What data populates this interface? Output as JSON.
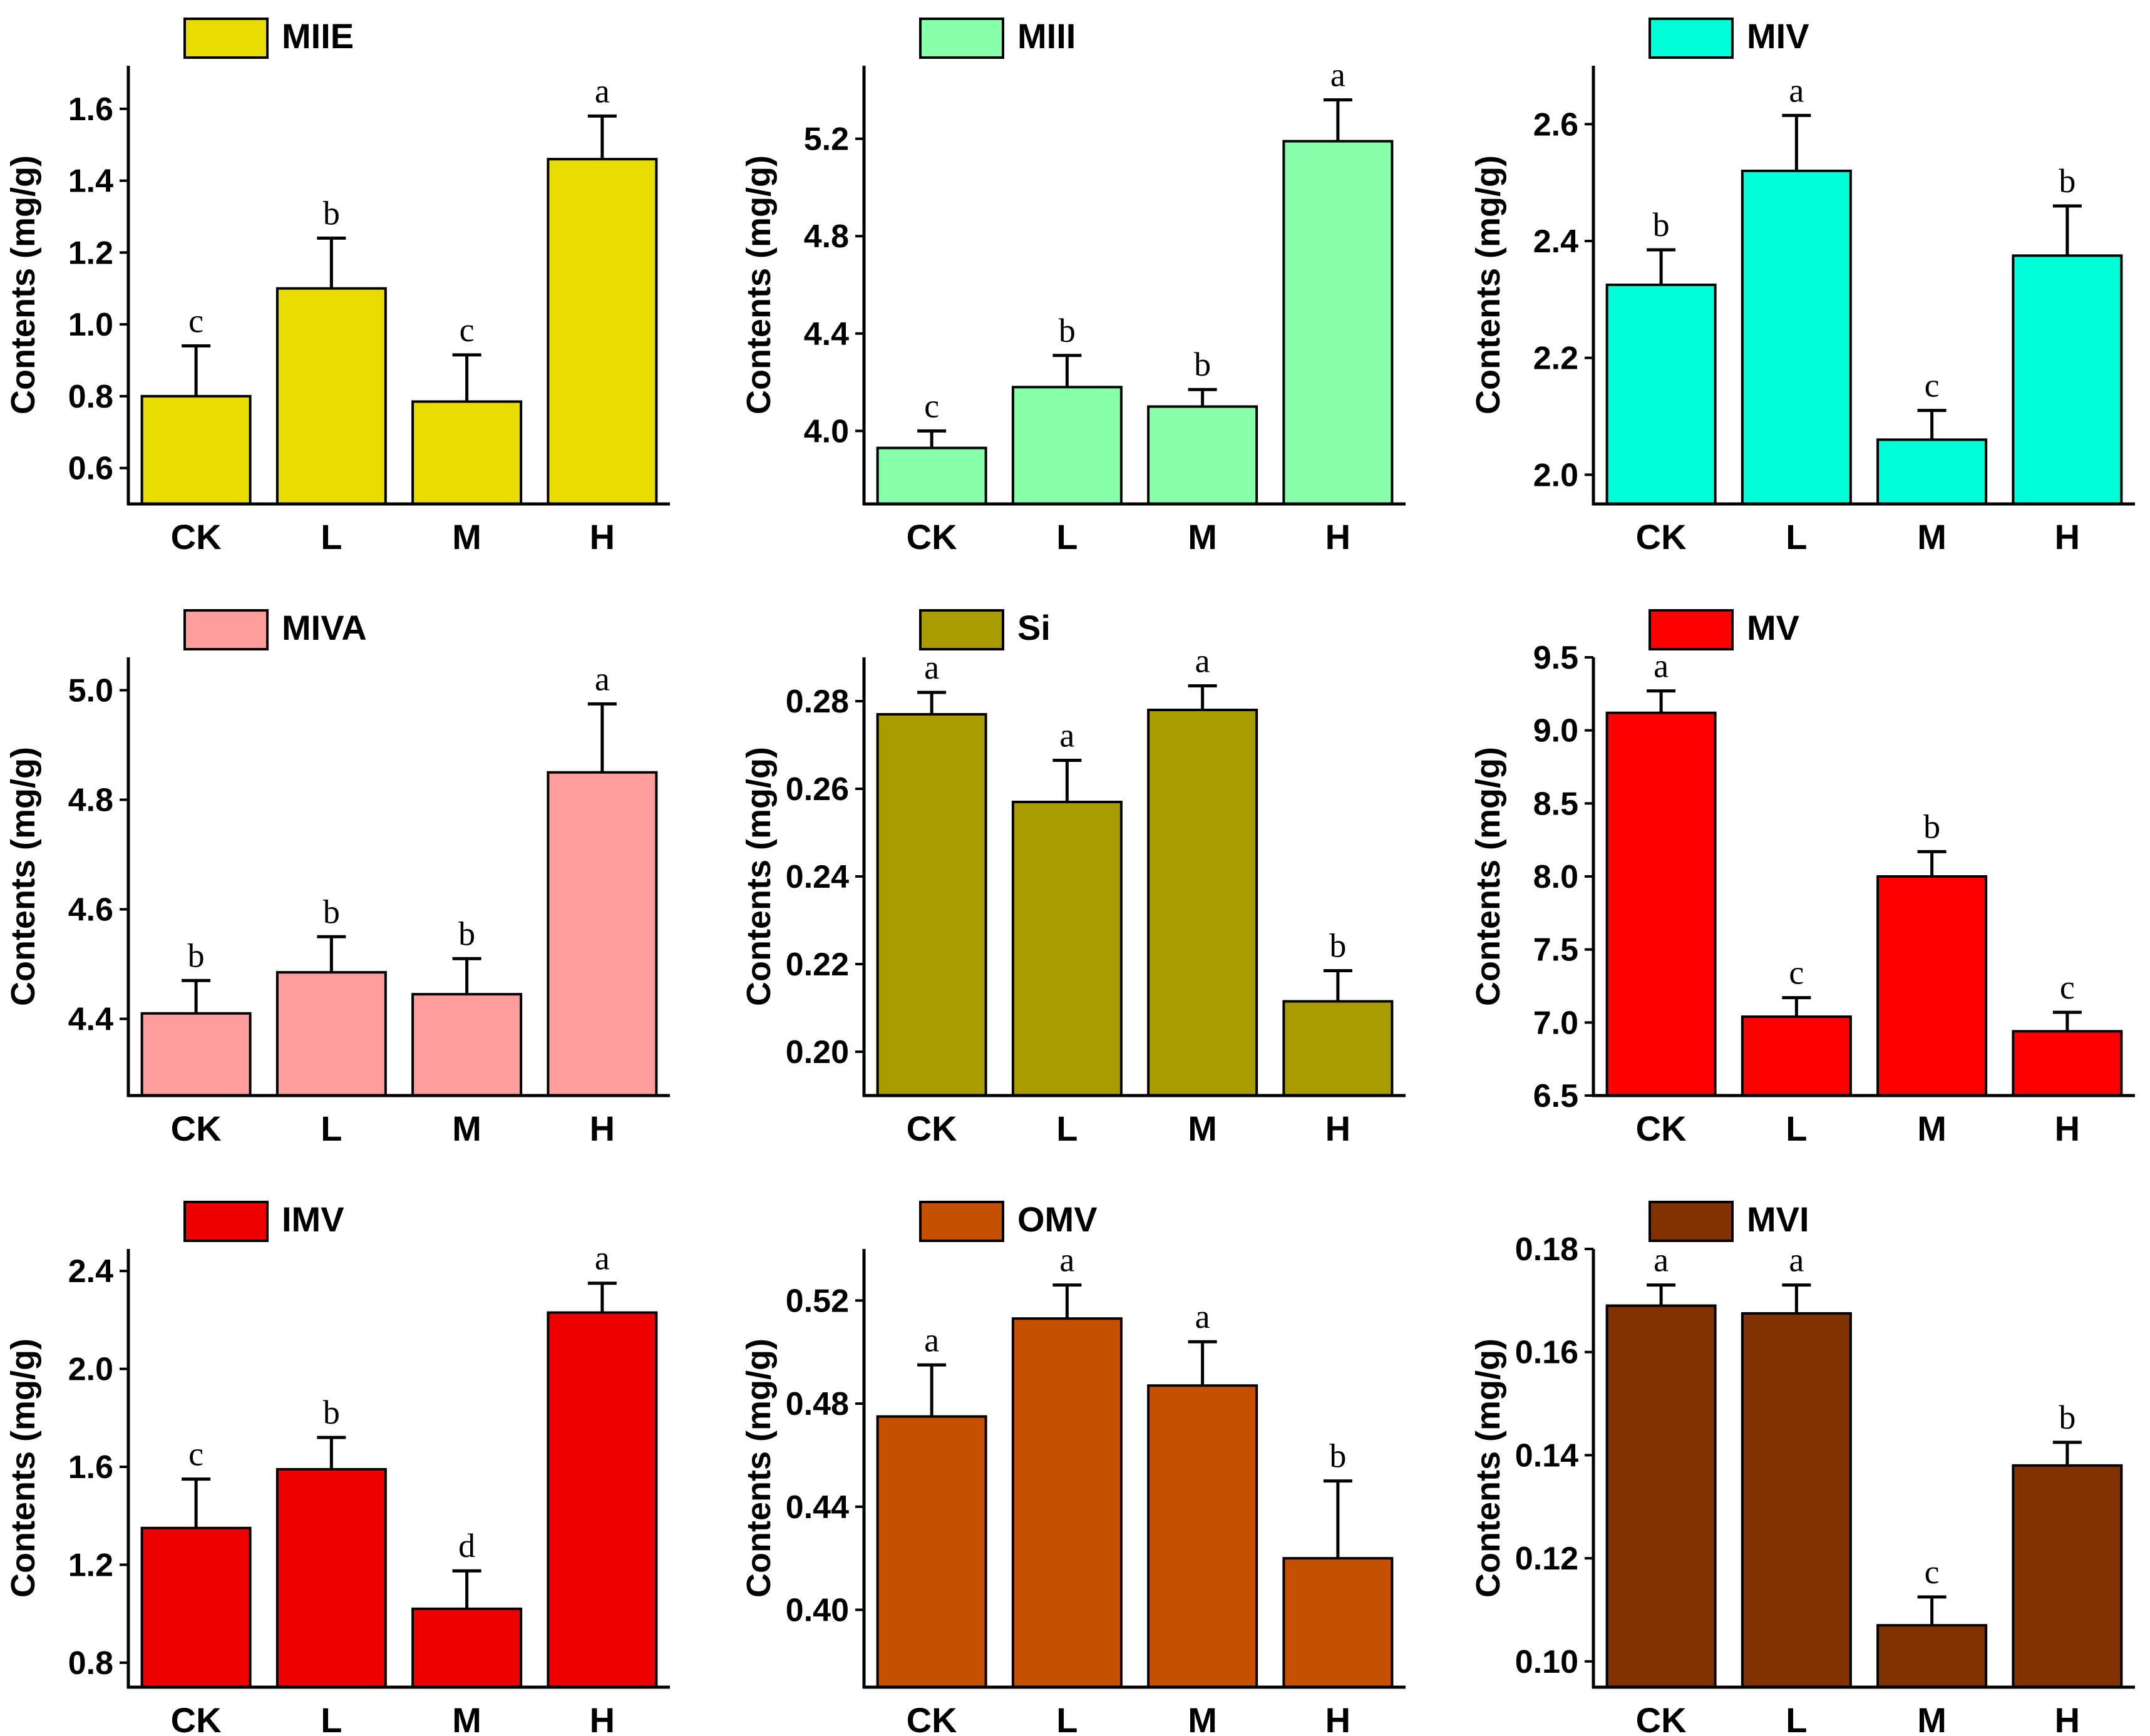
{
  "chart_data": [
    {
      "type": "bar",
      "title": "MIIE",
      "legend": "MIIE",
      "color": "#E8DC00",
      "categories": [
        "CK",
        "L",
        "M",
        "H"
      ],
      "values": [
        0.8,
        1.1,
        0.785,
        1.46
      ],
      "errors": [
        0.14,
        0.14,
        0.13,
        0.12
      ],
      "letters": [
        "c",
        "b",
        "c",
        "a"
      ],
      "ylabel": "Contents (mg/g)",
      "ylim": [
        0.5,
        1.72
      ],
      "yticks": [
        0.6,
        0.8,
        1.0,
        1.2,
        1.4,
        1.6
      ],
      "ytick_labels": [
        "0.6",
        "0.8",
        "1.0",
        "1.2",
        "1.4",
        "1.6"
      ]
    },
    {
      "type": "bar",
      "title": "MIII",
      "legend": "MIII",
      "color": "#88FFAA",
      "categories": [
        "CK",
        "L",
        "M",
        "H"
      ],
      "values": [
        3.93,
        4.18,
        4.1,
        5.19
      ],
      "errors": [
        0.07,
        0.13,
        0.07,
        0.17
      ],
      "letters": [
        "c",
        "b",
        "b",
        "a"
      ],
      "ylabel": "Contents (mg/g)",
      "ylim": [
        3.7,
        5.5
      ],
      "yticks": [
        4.0,
        4.4,
        4.8,
        5.2
      ],
      "ytick_labels": [
        "4.0",
        "4.4",
        "4.8",
        "5.2"
      ]
    },
    {
      "type": "bar",
      "title": "MIV",
      "legend": "MIV",
      "color": "#00FFD8",
      "categories": [
        "CK",
        "L",
        "M",
        "H"
      ],
      "values": [
        2.325,
        2.52,
        2.06,
        2.375
      ],
      "errors": [
        0.06,
        0.095,
        0.05,
        0.085
      ],
      "letters": [
        "b",
        "a",
        "c",
        "b"
      ],
      "ylabel": "Contents (mg/g)",
      "ylim": [
        1.95,
        2.7
      ],
      "yticks": [
        2.0,
        2.2,
        2.4,
        2.6
      ],
      "ytick_labels": [
        "2.0",
        "2.2",
        "2.4",
        "2.6"
      ]
    },
    {
      "type": "bar",
      "title": "MIVA",
      "legend": "MIVA",
      "color": "#FF9C9C",
      "categories": [
        "CK",
        "L",
        "M",
        "H"
      ],
      "values": [
        4.41,
        4.485,
        4.445,
        4.85
      ],
      "errors": [
        0.06,
        0.065,
        0.065,
        0.125
      ],
      "letters": [
        "b",
        "b",
        "b",
        "a"
      ],
      "ylabel": "Contents (mg/g)",
      "ylim": [
        4.26,
        5.06
      ],
      "yticks": [
        4.4,
        4.6,
        4.8,
        5.0
      ],
      "ytick_labels": [
        "4.4",
        "4.6",
        "4.8",
        "5.0"
      ]
    },
    {
      "type": "bar",
      "title": "Si",
      "legend": "Si",
      "color": "#A89C00",
      "categories": [
        "CK",
        "L",
        "M",
        "H"
      ],
      "values": [
        0.277,
        0.257,
        0.278,
        0.2115
      ],
      "errors": [
        0.005,
        0.0095,
        0.0055,
        0.007
      ],
      "letters": [
        "a",
        "a",
        "a",
        "b"
      ],
      "ylabel": "Contents (mg/g)",
      "ylim": [
        0.19,
        0.29
      ],
      "yticks": [
        0.2,
        0.22,
        0.24,
        0.26,
        0.28
      ],
      "ytick_labels": [
        "0.20",
        "0.22",
        "0.24",
        "0.26",
        "0.28"
      ]
    },
    {
      "type": "bar",
      "title": "MV",
      "legend": "MV",
      "color": "#FF0000",
      "categories": [
        "CK",
        "L",
        "M",
        "H"
      ],
      "values": [
        9.12,
        7.04,
        8.0,
        6.94
      ],
      "errors": [
        0.15,
        0.13,
        0.17,
        0.13
      ],
      "letters": [
        "a",
        "c",
        "b",
        "c"
      ],
      "ylabel": "Contents (mg/g)",
      "ylim": [
        6.5,
        9.5
      ],
      "yticks": [
        6.5,
        7.0,
        7.5,
        8.0,
        8.5,
        9.0,
        9.5
      ],
      "ytick_labels": [
        "6.5",
        "7.0",
        "7.5",
        "8.0",
        "8.5",
        "9.0",
        "9.5"
      ]
    },
    {
      "type": "bar",
      "title": "IMV",
      "legend": "IMV",
      "color": "#EE0000",
      "categories": [
        "CK",
        "L",
        "M",
        "H"
      ],
      "values": [
        1.35,
        1.59,
        1.02,
        2.23
      ],
      "errors": [
        0.2,
        0.13,
        0.155,
        0.12
      ],
      "letters": [
        "c",
        "b",
        "d",
        "a"
      ],
      "ylabel": "Contents (mg/g)",
      "ylim": [
        0.7,
        2.49
      ],
      "yticks": [
        0.8,
        1.2,
        1.6,
        2.0,
        2.4
      ],
      "ytick_labels": [
        "0.8",
        "1.2",
        "1.6",
        "2.0",
        "2.4"
      ]
    },
    {
      "type": "bar",
      "title": "OMV",
      "legend": "OMV",
      "color": "#C45000",
      "categories": [
        "CK",
        "L",
        "M",
        "H"
      ],
      "values": [
        0.475,
        0.513,
        0.487,
        0.42
      ],
      "errors": [
        0.02,
        0.013,
        0.017,
        0.03
      ],
      "letters": [
        "a",
        "a",
        "a",
        "b"
      ],
      "ylabel": "Contents (mg/g)",
      "ylim": [
        0.37,
        0.54
      ],
      "yticks": [
        0.4,
        0.44,
        0.48,
        0.52
      ],
      "ytick_labels": [
        "0.40",
        "0.44",
        "0.48",
        "0.52"
      ]
    },
    {
      "type": "bar",
      "title": "MVI",
      "legend": "MVI",
      "color": "#823200",
      "categories": [
        "CK",
        "L",
        "M",
        "H"
      ],
      "values": [
        0.169,
        0.1675,
        0.107,
        0.138
      ],
      "errors": [
        0.004,
        0.0055,
        0.0055,
        0.0045
      ],
      "letters": [
        "a",
        "a",
        "c",
        "b"
      ],
      "ylabel": "Contents (mg/g)",
      "ylim": [
        0.095,
        0.18
      ],
      "yticks": [
        0.1,
        0.12,
        0.14,
        0.16,
        0.18
      ],
      "ytick_labels": [
        "0.10",
        "0.12",
        "0.14",
        "0.16",
        "0.18"
      ]
    }
  ]
}
